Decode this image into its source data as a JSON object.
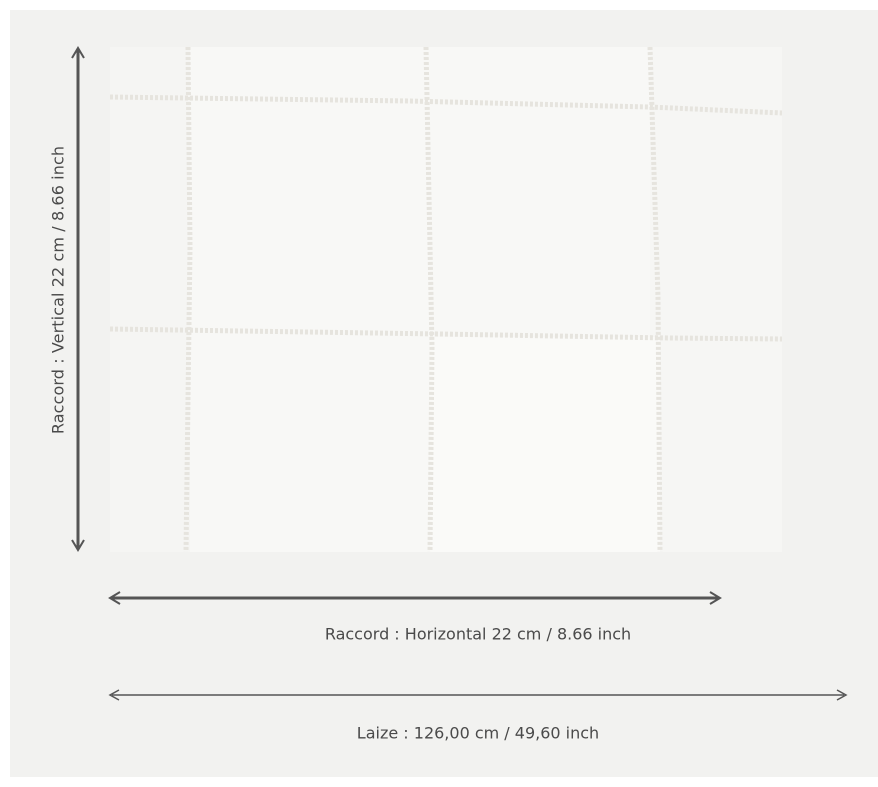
{
  "dimensions": {
    "vertical_repeat": "Raccord : Vertical 22 cm / 8.66 inch",
    "horizontal_repeat": "Raccord : Horizontal 22 cm / 8.66 inch",
    "width": "Laize : 126,00 cm / 49,60 inch"
  },
  "colors": {
    "background": "#f2f2f0",
    "swatch": "#f8f8f6",
    "stitch": "#e4e2dc",
    "arrow": "#4a4a4a"
  }
}
